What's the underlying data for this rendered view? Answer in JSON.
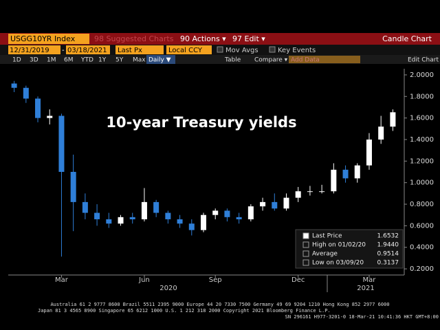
{
  "toolbar": {
    "ticker": "USGG10YR Index",
    "suggested": "98 Suggested Charts",
    "actions": "90 Actions ▾",
    "edit": "97 Edit ▾",
    "chart_kind": "Candle Chart",
    "start_date": "12/31/2019",
    "dash": "-",
    "end_date": "03/18/2021",
    "field": "Last Px",
    "currency": "Local CCY",
    "mov_avgs": "Mov Avgs",
    "key_events": "Key Events",
    "periods": [
      "1D",
      "3D",
      "1M",
      "6M",
      "YTD",
      "1Y",
      "5Y",
      "Max"
    ],
    "frequency": "Daily ▼",
    "table": "Table",
    "compare": "Compare ▾",
    "add_data": "Add Data",
    "edit_chart": "Edit Chart"
  },
  "chart_data": {
    "type": "candlestick",
    "annotation": "10-year Treasury yields",
    "categories": [
      null,
      null,
      null,
      null,
      "Mar",
      null,
      null,
      null,
      null,
      null,
      null,
      "Jun",
      null,
      null,
      null,
      null,
      null,
      "Sep",
      null,
      null,
      null,
      null,
      null,
      null,
      "Dec",
      null,
      null,
      null,
      null,
      null,
      "Mar",
      null,
      null
    ],
    "years": [
      "2020",
      "2021"
    ],
    "open": [
      1.92,
      1.88,
      1.78,
      1.6,
      1.62,
      1.1,
      0.82,
      0.72,
      0.66,
      0.62,
      0.68,
      0.66,
      0.82,
      0.72,
      0.66,
      0.62,
      0.56,
      0.7,
      0.74,
      0.68,
      0.66,
      0.78,
      0.82,
      0.76,
      0.86,
      0.92,
      0.92,
      0.92,
      1.12,
      1.04,
      1.16,
      1.4,
      1.52
    ],
    "high": [
      1.944,
      1.9,
      1.8,
      1.68,
      1.64,
      1.26,
      0.9,
      0.8,
      0.72,
      0.7,
      0.72,
      0.95,
      0.84,
      0.74,
      0.7,
      0.66,
      0.72,
      0.76,
      0.76,
      0.72,
      0.8,
      0.86,
      0.9,
      0.9,
      0.96,
      0.97,
      0.98,
      1.18,
      1.16,
      1.18,
      1.46,
      1.62,
      1.68
    ],
    "low": [
      1.84,
      1.74,
      1.56,
      1.54,
      0.3137,
      0.55,
      0.66,
      0.6,
      0.58,
      0.6,
      0.62,
      0.64,
      0.68,
      0.62,
      0.58,
      0.51,
      0.54,
      0.66,
      0.64,
      0.62,
      0.64,
      0.74,
      0.74,
      0.74,
      0.82,
      0.88,
      0.9,
      0.9,
      1.0,
      1.0,
      1.12,
      1.36,
      1.48
    ],
    "close": [
      1.88,
      1.78,
      1.6,
      1.62,
      1.1,
      0.82,
      0.72,
      0.66,
      0.62,
      0.68,
      0.66,
      0.82,
      0.72,
      0.66,
      0.62,
      0.56,
      0.7,
      0.74,
      0.68,
      0.66,
      0.78,
      0.82,
      0.76,
      0.86,
      0.92,
      0.92,
      0.92,
      1.12,
      1.04,
      1.16,
      1.4,
      1.52,
      1.6532
    ],
    "up_color": "#ffffff",
    "down_color": "#2f7fd8",
    "ylim": [
      0.143,
      2.057
    ],
    "yticks": [
      {
        "value": 0.2,
        "label": "0.2000"
      },
      {
        "value": 0.4,
        "label": "0.4000"
      },
      {
        "value": 0.6,
        "label": "0.6000"
      },
      {
        "value": 0.8,
        "label": "0.8000"
      },
      {
        "value": 1.0,
        "label": "1.0000"
      },
      {
        "value": 1.2,
        "label": "1.2000"
      },
      {
        "value": 1.4,
        "label": "1.4000"
      },
      {
        "value": 1.6,
        "label": "1.6000"
      },
      {
        "value": 1.8,
        "label": "1.8000"
      },
      {
        "value": 2.0,
        "label": "2.0000"
      }
    ],
    "stats": [
      {
        "label": "Last Price",
        "value": "1.6532"
      },
      {
        "label": "High on 01/02/20",
        "value": "1.9440"
      },
      {
        "label": "Average",
        "value": "0.9514"
      },
      {
        "label": "Low on 03/09/20",
        "value": "0.3137"
      }
    ]
  },
  "footer": [
    "Australia 61 2 9777 8600 Brazil 5511 2395 9000 Europe 44 20 7330 7500 Germany 49 69 9204 1210 Hong Kong 852 2977 6000",
    "Japan 81 3 4565 8900       Singapore 65 6212 1000       U.S. 1 212 318 2000          Copyright 2021 Bloomberg Finance L.P.",
    "SN 296161 H977-3201-0 18-Mar-21 10:41:36 HKT  GMT+8:00"
  ]
}
